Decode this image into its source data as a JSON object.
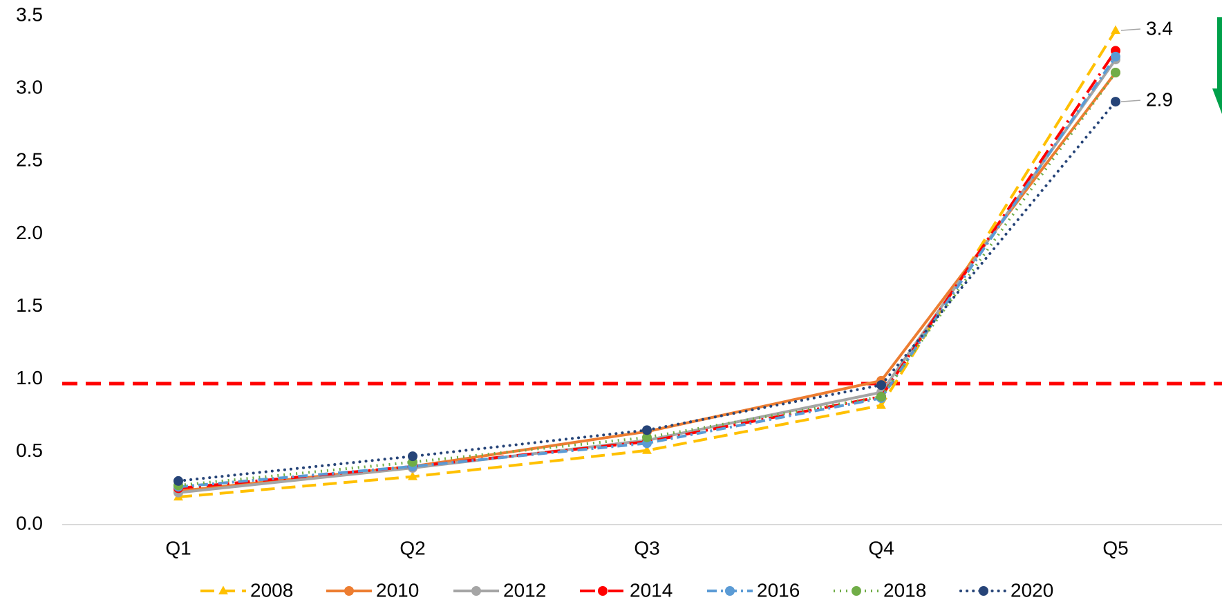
{
  "chart_data": {
    "type": "line",
    "categories": [
      "Q1",
      "Q2",
      "Q3",
      "Q4",
      "Q5"
    ],
    "ylim": [
      0,
      3.5
    ],
    "yticks": [
      {
        "value": 0,
        "label": "0.0"
      },
      0.5,
      {
        "value": 1,
        "label": "1.0"
      },
      1.5,
      {
        "value": 2,
        "label": "2.0"
      },
      2.5,
      {
        "value": 3,
        "label": "3.0"
      },
      3.5
    ],
    "reference_line": {
      "value": 0.97,
      "color": "#ff0000"
    },
    "legend": "bottom",
    "series": [
      {
        "name": "2008",
        "color": "#ffc000",
        "linestyle": "dashed",
        "marker": "triangle",
        "values": [
          0.19,
          0.33,
          0.51,
          0.82,
          3.4
        ],
        "value_labels": [
          null,
          null,
          null,
          null,
          "3.4"
        ]
      },
      {
        "name": "2010",
        "color": "#ed7d31",
        "linestyle": "solid",
        "marker": "circle",
        "values": [
          0.23,
          0.4,
          0.64,
          0.99,
          3.11
        ]
      },
      {
        "name": "2012",
        "color": "#a5a5a5",
        "linestyle": "solid",
        "marker": "circle",
        "values": [
          0.22,
          0.39,
          0.58,
          0.91,
          3.2
        ]
      },
      {
        "name": "2014",
        "color": "#ff0000",
        "linestyle": "dashdot",
        "marker": "circle",
        "values": [
          0.25,
          0.4,
          0.57,
          0.88,
          3.26
        ]
      },
      {
        "name": "2016",
        "color": "#5b9bd5",
        "linestyle": "dashdot-short",
        "marker": "circle",
        "values": [
          0.26,
          0.4,
          0.56,
          0.87,
          3.22
        ]
      },
      {
        "name": "2018",
        "color": "#70ad47",
        "linestyle": "dotted",
        "marker": "circle",
        "values": [
          0.27,
          0.43,
          0.6,
          0.88,
          3.11
        ]
      },
      {
        "name": "2020",
        "color": "#264478",
        "linestyle": "dotted-round",
        "marker": "circle",
        "values": [
          0.3,
          0.47,
          0.65,
          0.96,
          2.91
        ],
        "value_labels": [
          null,
          null,
          null,
          null,
          "2.9"
        ]
      }
    ]
  }
}
